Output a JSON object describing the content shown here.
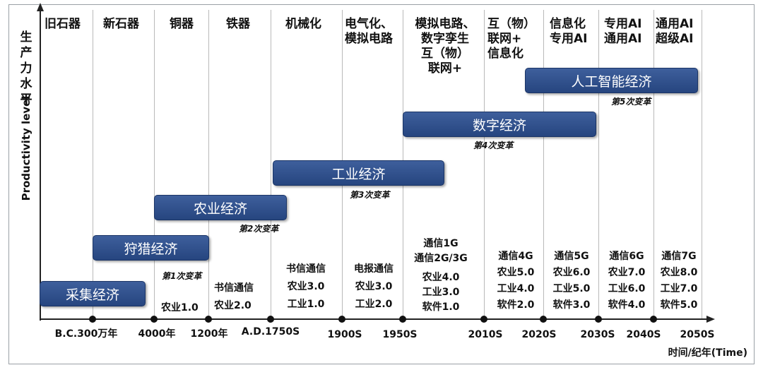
{
  "y_axis": {
    "label_cn": "生产力水平",
    "label_en": "Productivity level"
  },
  "x_axis": {
    "label": "时间/纪年(Time)"
  },
  "eras": [
    "旧石器",
    "新石器",
    "铜器",
    "铁器",
    "机械化",
    "电气化、\n模拟电路",
    "模拟电路、\n数字孪生\n互（物）\n联网+",
    "互（物）\n联网+\n信息化",
    "信息化\n专用AI",
    "专用AI\n通用AI",
    "通用AI\n超级AI"
  ],
  "economies": [
    "采集经济",
    "狩猎经济",
    "农业经济",
    "工业经济",
    "数字经济",
    "人工智能经济"
  ],
  "revolutions": [
    "第1次变革",
    "第2次变革",
    "第3次变革",
    "第4次变革",
    "第5次变革"
  ],
  "periods": [
    {
      "items": []
    },
    {
      "items": []
    },
    {
      "items": [
        "农业1.0"
      ]
    },
    {
      "items": [
        "书信通信",
        "农业2.0"
      ]
    },
    {
      "items": [
        "书信通信",
        "农业3.0",
        "工业1.0"
      ]
    },
    {
      "items": [
        "电报通信",
        "农业3.0",
        "工业2.0"
      ]
    },
    {
      "items": [
        "通信1G",
        "通信2G/3G",
        "农业4.0",
        "工业3.0",
        "软件1.0"
      ]
    },
    {
      "items": [
        "通信4G",
        "农业5.0",
        "工业4.0",
        "软件2.0"
      ]
    },
    {
      "items": [
        "通信5G",
        "农业6.0",
        "工业5.0",
        "软件3.0"
      ]
    },
    {
      "items": [
        "通信6G",
        "农业7.0",
        "工业6.0",
        "软件4.0"
      ]
    },
    {
      "items": [
        "通信7G",
        "农业8.0",
        "工业7.0",
        "软件5.0"
      ]
    }
  ],
  "ticks": [
    "B.C.300万年",
    "4000年",
    "1200年",
    "A.D.1750S",
    "1900S",
    "1950S",
    "2010S",
    "2020S",
    "2030S",
    "2040S",
    "2050S"
  ]
}
